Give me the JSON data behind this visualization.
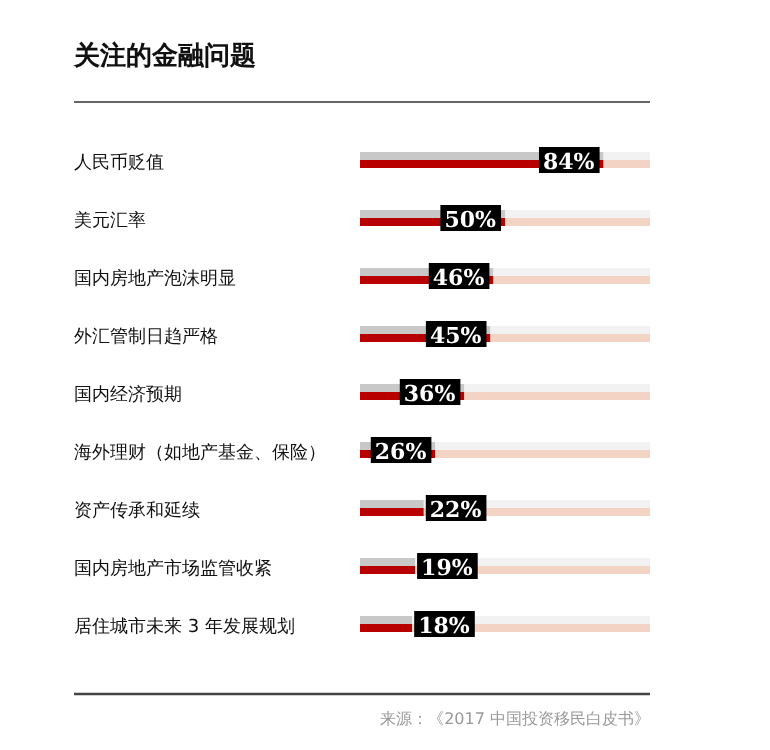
{
  "chart_data": {
    "type": "bar",
    "orientation": "horizontal",
    "stacked": true,
    "title": "关注的金融问题",
    "categories": [
      "人民币贬值",
      "美元汇率",
      "国内房地产泡沫明显",
      "外汇管制日趋严格",
      "国内经济预期",
      "海外理财（如地产基金、保险）",
      "资产传承和延续",
      "国内房地产市场监管收紧",
      "居住城市未来 3 年发展规划"
    ],
    "series": [
      {
        "color": "#b80000",
        "values": [
          84,
          50,
          46,
          45,
          36,
          26,
          22,
          19,
          18
        ],
        "value_labels": [
          "84%",
          "50%",
          "46%",
          "45%",
          "36%",
          "26%",
          "22%",
          "19%",
          "18%"
        ]
      },
      {
        "color": "#f2d3c4",
        "values": [
          16,
          50,
          54,
          55,
          64,
          74,
          78,
          81,
          82
        ]
      }
    ],
    "annotations": [
      "来源：《2017 中国投资移民白皮书》"
    ]
  }
}
